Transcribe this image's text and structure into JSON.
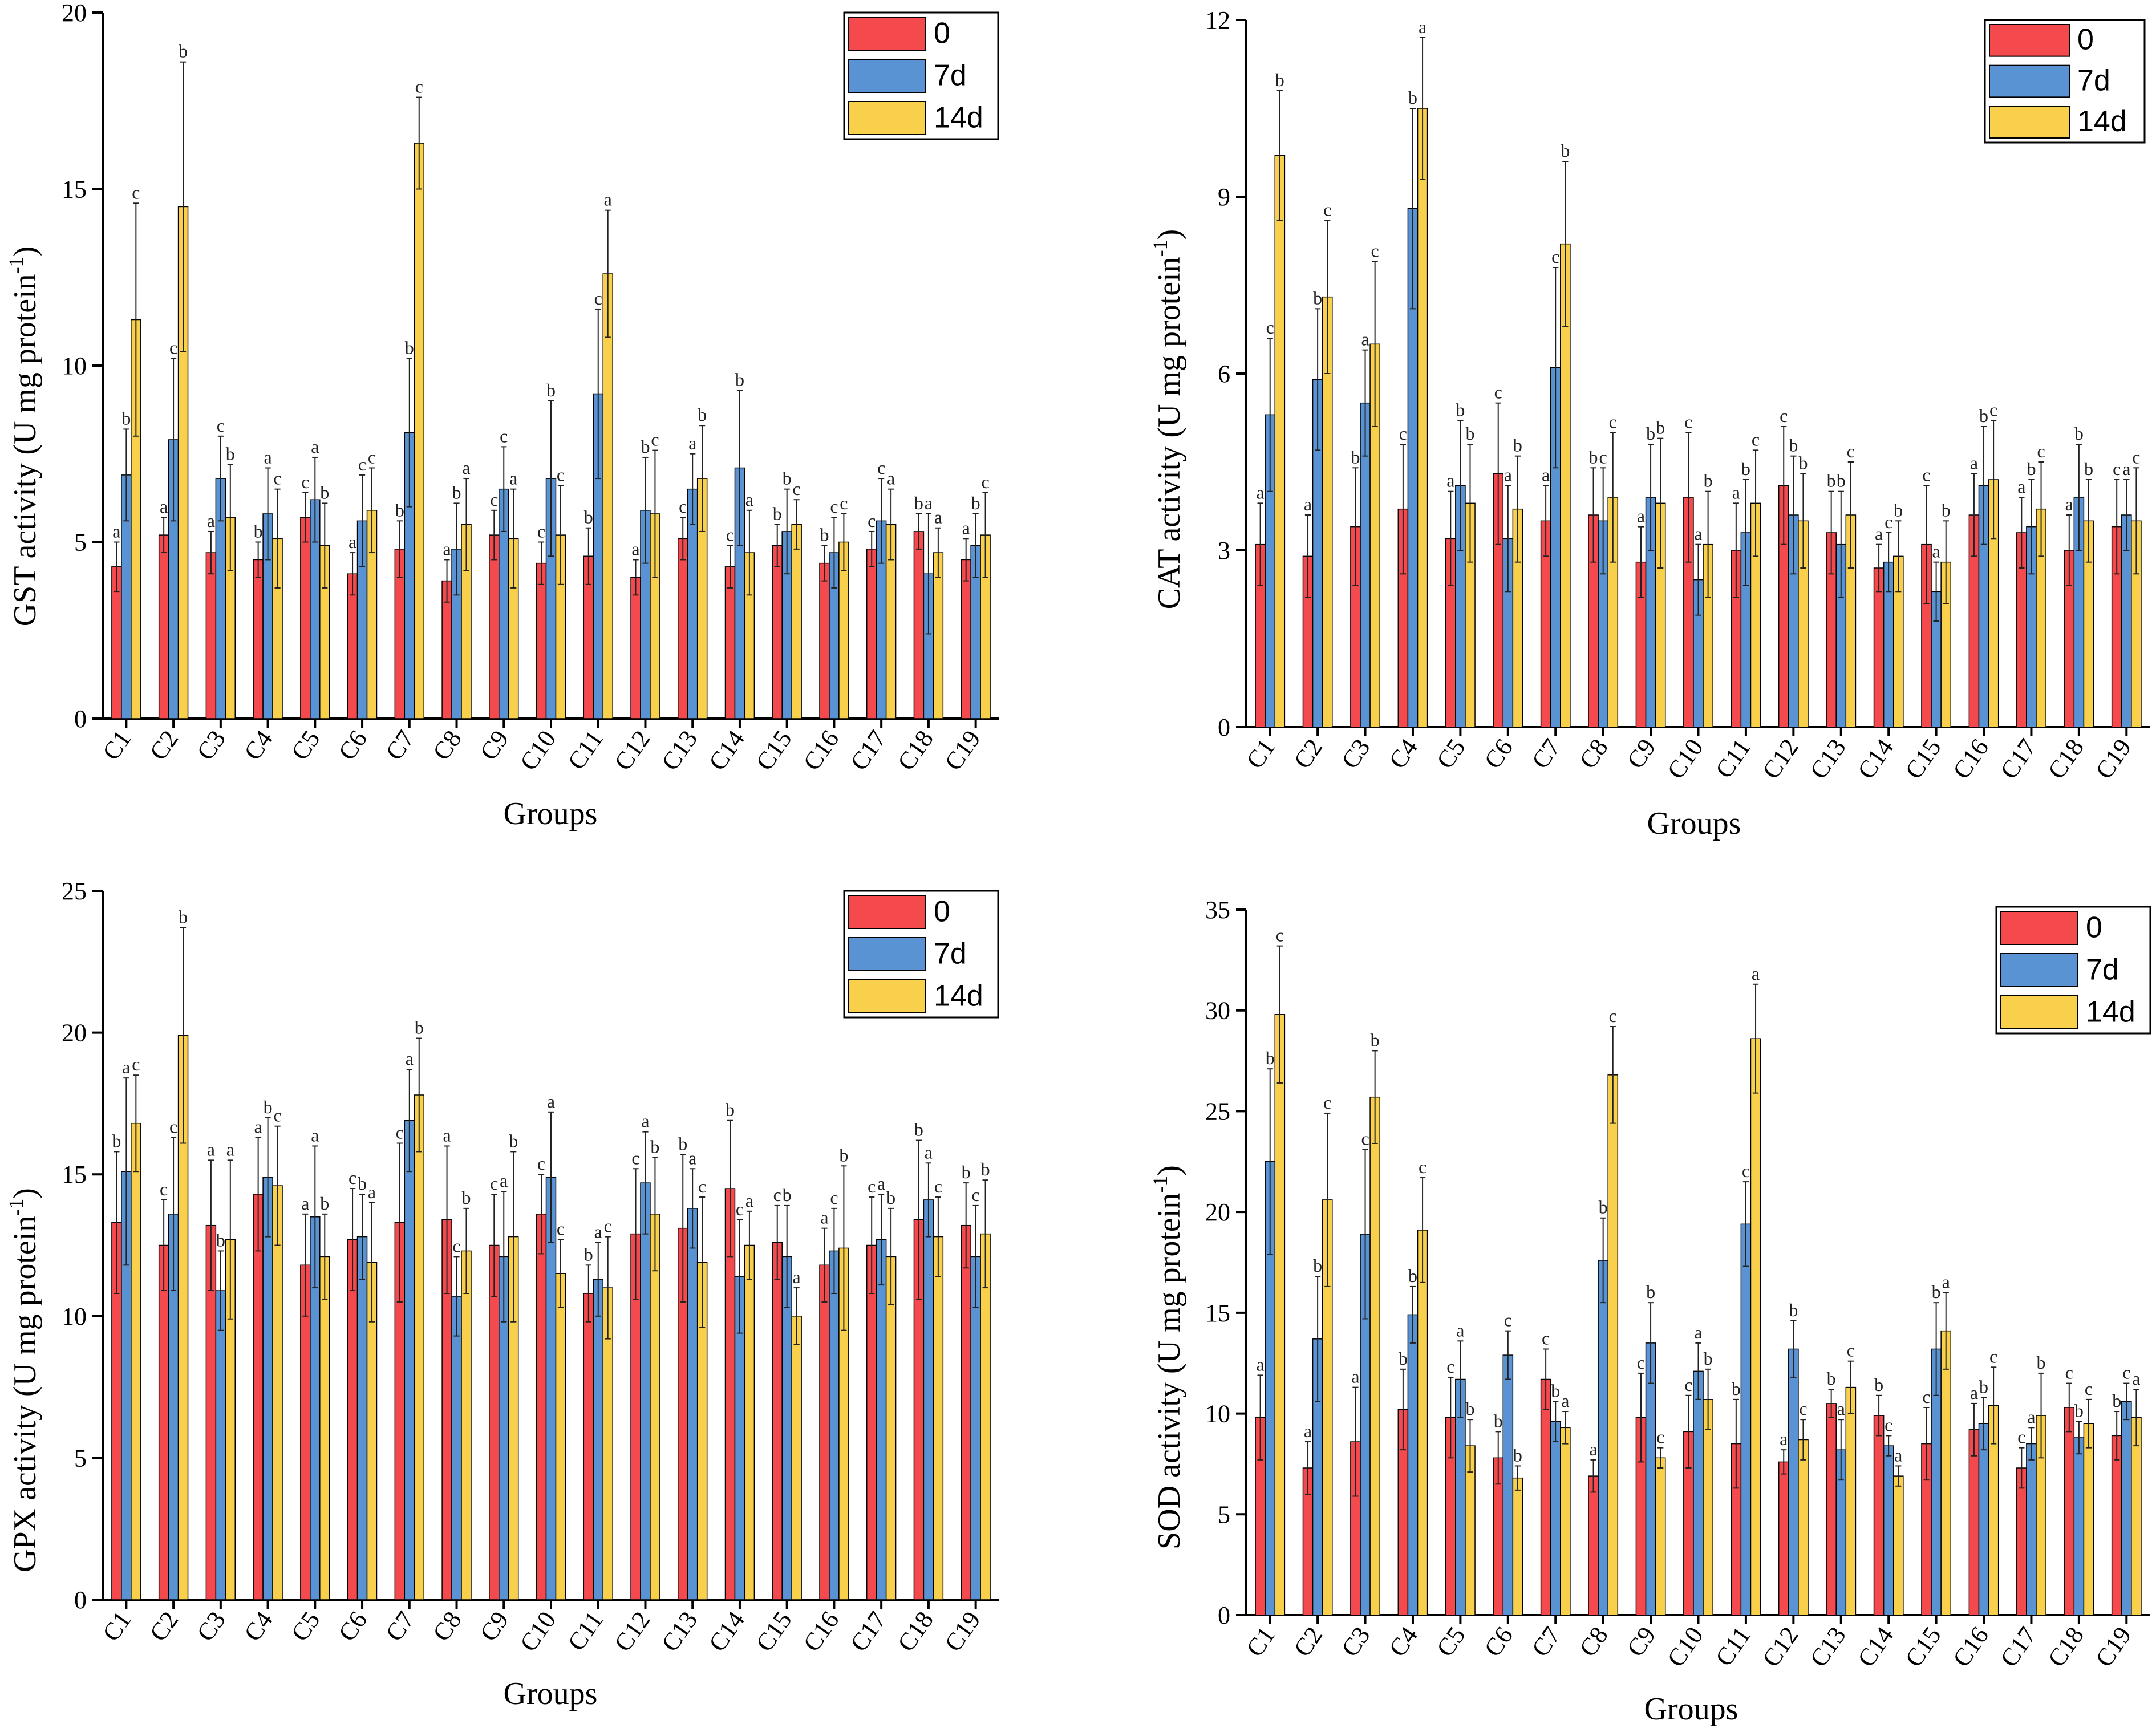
{
  "legend_labels": [
    "0",
    "7d",
    "14d"
  ],
  "colors": {
    "s0": "#f44a4e",
    "s7": "#5a93d4",
    "s14": "#f8d04c"
  },
  "chart_data": [
    {
      "type": "bar",
      "ylabel_main": "GST activity (U mg protein",
      "ylabel_sup": "-1",
      "ylabel_close": ")",
      "xlabel": "Groups",
      "ylim": [
        0,
        20
      ],
      "yticks": [
        "0",
        "5",
        "10",
        "15",
        "20"
      ],
      "categories": [
        "C1",
        "C2",
        "C3",
        "C4",
        "C5",
        "C6",
        "C7",
        "C8",
        "C9",
        "C10",
        "C11",
        "C12",
        "C13",
        "C14",
        "C15",
        "C16",
        "C17",
        "C18",
        "C19"
      ],
      "series": [
        {
          "name": "0",
          "values": [
            4.3,
            5.2,
            4.7,
            4.5,
            5.7,
            4.1,
            4.8,
            3.9,
            5.2,
            4.4,
            4.6,
            4.0,
            5.1,
            4.3,
            4.9,
            4.4,
            4.8,
            5.3,
            4.5
          ],
          "errors": [
            0.7,
            0.5,
            0.6,
            0.5,
            0.7,
            0.6,
            0.8,
            0.6,
            0.7,
            0.6,
            0.8,
            0.5,
            0.6,
            0.6,
            0.6,
            0.5,
            0.5,
            0.5,
            0.6
          ],
          "letters": [
            "a",
            "a",
            "a",
            "b",
            "c",
            "a",
            "b",
            "a",
            "c",
            "c",
            "b",
            "a",
            "c",
            "c",
            "b",
            "b",
            "c",
            "b",
            "a"
          ]
        },
        {
          "name": "7d",
          "values": [
            6.9,
            7.9,
            6.8,
            5.8,
            6.2,
            5.6,
            8.1,
            4.8,
            6.5,
            6.8,
            9.2,
            5.9,
            6.5,
            7.1,
            5.3,
            4.7,
            5.6,
            4.1,
            4.9
          ],
          "errors": [
            1.3,
            2.3,
            1.2,
            1.3,
            1.2,
            1.3,
            2.1,
            1.3,
            1.2,
            2.2,
            2.4,
            1.5,
            1.0,
            2.2,
            1.2,
            1.0,
            1.2,
            1.7,
            0.9
          ],
          "letters": [
            "b",
            "c",
            "c",
            "a",
            "a",
            "c",
            "b",
            "b",
            "c",
            "b",
            "c",
            "b",
            "a",
            "b",
            "b",
            "c",
            "c",
            "a",
            "b"
          ]
        },
        {
          "name": "14d",
          "values": [
            11.3,
            14.5,
            5.7,
            5.1,
            4.9,
            5.9,
            16.3,
            5.5,
            5.1,
            5.2,
            12.6,
            5.8,
            6.8,
            4.7,
            5.5,
            5.0,
            5.5,
            4.7,
            5.2
          ],
          "errors": [
            3.3,
            4.1,
            1.5,
            1.4,
            1.2,
            1.2,
            1.3,
            1.3,
            1.4,
            1.4,
            1.8,
            1.8,
            1.5,
            1.2,
            0.7,
            0.8,
            1.0,
            0.7,
            1.2
          ],
          "letters": [
            "c",
            "b",
            "b",
            "c",
            "b",
            "c",
            "c",
            "a",
            "a",
            "c",
            "a",
            "c",
            "b",
            "a",
            "c",
            "c",
            "a",
            "a",
            "c"
          ]
        }
      ]
    },
    {
      "type": "bar",
      "ylabel_main": "CAT activity (U mg protein",
      "ylabel_sup": "-1",
      "ylabel_close": ")",
      "xlabel": "Groups",
      "ylim": [
        0,
        12
      ],
      "yticks": [
        "0",
        "3",
        "6",
        "9",
        "12"
      ],
      "categories": [
        "C1",
        "C2",
        "C3",
        "C4",
        "C5",
        "C6",
        "C7",
        "C8",
        "C9",
        "C10",
        "C11",
        "C12",
        "C13",
        "C14",
        "C15",
        "C16",
        "C17",
        "C18",
        "C19"
      ],
      "series": [
        {
          "name": "0",
          "values": [
            3.1,
            2.9,
            3.4,
            3.7,
            3.2,
            4.3,
            3.5,
            3.6,
            2.8,
            3.9,
            3.0,
            4.1,
            3.3,
            2.7,
            3.1,
            3.6,
            3.3,
            3.0,
            3.4
          ],
          "errors": [
            0.7,
            0.7,
            1.0,
            1.1,
            0.8,
            1.2,
            0.6,
            0.8,
            0.6,
            1.1,
            0.8,
            1.0,
            0.7,
            0.4,
            1.0,
            0.7,
            0.6,
            0.6,
            0.8
          ],
          "letters": [
            "a",
            "a",
            "b",
            "c",
            "a",
            "c",
            "a",
            "b",
            "a",
            "c",
            "a",
            "c",
            "b",
            "a",
            "c",
            "a",
            "a",
            "a",
            "c"
          ]
        },
        {
          "name": "7d",
          "values": [
            5.3,
            5.9,
            5.5,
            8.8,
            4.1,
            3.2,
            6.1,
            3.5,
            3.9,
            2.5,
            3.3,
            3.6,
            3.1,
            2.8,
            2.3,
            4.1,
            3.4,
            3.9,
            3.6
          ],
          "errors": [
            1.3,
            1.2,
            0.9,
            1.7,
            1.1,
            0.9,
            1.7,
            0.9,
            0.9,
            0.6,
            0.9,
            1.0,
            0.9,
            0.5,
            0.5,
            1.0,
            0.8,
            0.9,
            0.6
          ],
          "letters": [
            "c",
            "b",
            "a",
            "b",
            "b",
            "a",
            "c",
            "c",
            "b",
            "a",
            "b",
            "b",
            "b",
            "c",
            "a",
            "b",
            "b",
            "b",
            "a"
          ]
        },
        {
          "name": "14d",
          "values": [
            9.7,
            7.3,
            6.5,
            10.5,
            3.8,
            3.7,
            8.2,
            3.9,
            3.8,
            3.1,
            3.8,
            3.5,
            3.6,
            2.9,
            2.8,
            4.2,
            3.7,
            3.5,
            3.5
          ],
          "errors": [
            1.1,
            1.3,
            1.4,
            1.2,
            1.0,
            0.9,
            1.4,
            1.1,
            1.1,
            0.9,
            0.9,
            0.8,
            0.9,
            0.6,
            0.7,
            1.0,
            0.8,
            0.7,
            0.9
          ],
          "letters": [
            "b",
            "c",
            "c",
            "a",
            "b",
            "b",
            "b",
            "c",
            "b",
            "b",
            "c",
            "b",
            "c",
            "b",
            "b",
            "c",
            "c",
            "b",
            "c"
          ]
        }
      ]
    },
    {
      "type": "bar",
      "ylabel_main": "GPX activity (U mg protein",
      "ylabel_sup": "-1",
      "ylabel_close": ")",
      "xlabel": "Groups",
      "ylim": [
        0,
        25
      ],
      "yticks": [
        "0",
        "5",
        "10",
        "15",
        "20",
        "25"
      ],
      "categories": [
        "C1",
        "C2",
        "C3",
        "C4",
        "C5",
        "C6",
        "C7",
        "C8",
        "C9",
        "C10",
        "C11",
        "C12",
        "C13",
        "C14",
        "C15",
        "C16",
        "C17",
        "C18",
        "C19"
      ],
      "series": [
        {
          "name": "0",
          "values": [
            13.3,
            12.5,
            13.2,
            14.3,
            11.8,
            12.7,
            13.3,
            13.4,
            12.5,
            13.6,
            10.8,
            12.9,
            13.1,
            14.5,
            12.6,
            11.8,
            12.5,
            13.4,
            13.2
          ],
          "errors": [
            2.5,
            1.6,
            2.3,
            2.0,
            1.8,
            1.8,
            2.8,
            2.6,
            1.8,
            1.4,
            1.0,
            2.3,
            2.6,
            2.4,
            1.3,
            1.3,
            1.7,
            2.8,
            1.5
          ],
          "letters": [
            "b",
            "c",
            "a",
            "a",
            "a",
            "c",
            "c",
            "a",
            "c",
            "c",
            "b",
            "c",
            "b",
            "b",
            "c",
            "a",
            "c",
            "b",
            "b"
          ]
        },
        {
          "name": "7d",
          "values": [
            15.1,
            13.6,
            10.9,
            14.9,
            13.5,
            12.8,
            16.9,
            10.7,
            12.1,
            14.9,
            11.3,
            14.7,
            13.8,
            11.4,
            12.1,
            12.3,
            12.7,
            14.1,
            12.1
          ],
          "errors": [
            3.3,
            2.7,
            1.4,
            2.1,
            2.5,
            1.5,
            1.8,
            1.4,
            2.3,
            2.3,
            1.3,
            1.8,
            1.4,
            2.0,
            1.8,
            1.5,
            1.6,
            1.3,
            1.8
          ],
          "letters": [
            "a",
            "c",
            "b",
            "b",
            "a",
            "b",
            "a",
            "c",
            "a",
            "a",
            "a",
            "a",
            "a",
            "c",
            "b",
            "c",
            "a",
            "a",
            "c"
          ]
        },
        {
          "name": "14d",
          "values": [
            16.8,
            19.9,
            12.7,
            14.6,
            12.1,
            11.9,
            17.8,
            12.3,
            12.8,
            11.5,
            11.0,
            13.6,
            11.9,
            12.5,
            10.0,
            12.4,
            12.1,
            12.8,
            12.9
          ],
          "errors": [
            1.7,
            3.8,
            2.8,
            2.1,
            1.5,
            2.1,
            2.0,
            1.5,
            3.0,
            1.2,
            1.8,
            2.0,
            2.3,
            1.2,
            1.0,
            2.9,
            1.7,
            1.4,
            1.9
          ],
          "letters": [
            "c",
            "b",
            "a",
            "c",
            "b",
            "a",
            "b",
            "b",
            "b",
            "c",
            "c",
            "b",
            "c",
            "a",
            "a",
            "b",
            "b",
            "c",
            "b"
          ]
        }
      ]
    },
    {
      "type": "bar",
      "ylabel_main": "SOD activity (U mg protein",
      "ylabel_sup": "-1",
      "ylabel_close": ")",
      "xlabel": "Groups",
      "ylim": [
        0,
        35
      ],
      "yticks": [
        "0",
        "5",
        "10",
        "15",
        "20",
        "25",
        "30",
        "35"
      ],
      "categories": [
        "C1",
        "C2",
        "C3",
        "C4",
        "C5",
        "C6",
        "C7",
        "C8",
        "C9",
        "C10",
        "C11",
        "C12",
        "C13",
        "C14",
        "C15",
        "C16",
        "C17",
        "C18",
        "C19"
      ],
      "series": [
        {
          "name": "0",
          "values": [
            9.8,
            7.3,
            8.6,
            10.2,
            9.8,
            7.8,
            11.7,
            6.9,
            9.8,
            9.1,
            8.5,
            7.6,
            10.5,
            9.9,
            8.5,
            9.2,
            7.3,
            10.3,
            8.9
          ],
          "errors": [
            2.1,
            1.3,
            2.7,
            2.0,
            2.0,
            1.3,
            1.5,
            0.8,
            2.2,
            1.8,
            2.2,
            0.6,
            0.7,
            1.0,
            1.8,
            1.3,
            1.0,
            1.2,
            1.2
          ],
          "letters": [
            "a",
            "a",
            "a",
            "b",
            "c",
            "b",
            "c",
            "a",
            "c",
            "c",
            "b",
            "a",
            "b",
            "b",
            "c",
            "a",
            "c",
            "c",
            "b"
          ]
        },
        {
          "name": "7d",
          "values": [
            22.5,
            13.7,
            18.9,
            14.9,
            11.7,
            12.9,
            9.6,
            17.6,
            13.5,
            12.1,
            19.4,
            13.2,
            8.2,
            8.4,
            13.2,
            9.5,
            8.5,
            8.8,
            10.6
          ],
          "errors": [
            4.6,
            3.1,
            4.2,
            1.4,
            1.9,
            1.2,
            1.0,
            2.1,
            2.0,
            1.4,
            2.1,
            1.4,
            1.5,
            0.5,
            2.3,
            1.3,
            0.8,
            0.8,
            0.9
          ],
          "letters": [
            "b",
            "b",
            "c",
            "b",
            "a",
            "c",
            "b",
            "b",
            "b",
            "a",
            "c",
            "b",
            "a",
            "c",
            "b",
            "b",
            "a",
            "b",
            "c"
          ]
        },
        {
          "name": "14d",
          "values": [
            29.8,
            20.6,
            25.7,
            19.1,
            8.4,
            6.8,
            9.3,
            26.8,
            7.8,
            10.7,
            28.6,
            8.7,
            11.3,
            6.9,
            14.1,
            10.4,
            9.9,
            9.5,
            9.8
          ],
          "errors": [
            3.4,
            4.3,
            2.3,
            2.6,
            1.3,
            0.6,
            0.8,
            2.4,
            0.5,
            1.5,
            2.7,
            1.0,
            1.3,
            0.5,
            1.9,
            1.9,
            2.1,
            1.2,
            1.4
          ],
          "letters": [
            "c",
            "c",
            "b",
            "c",
            "b",
            "b",
            "a",
            "c",
            "c",
            "b",
            "a",
            "c",
            "c",
            "a",
            "a",
            "c",
            "b",
            "c",
            "a"
          ]
        }
      ]
    }
  ]
}
